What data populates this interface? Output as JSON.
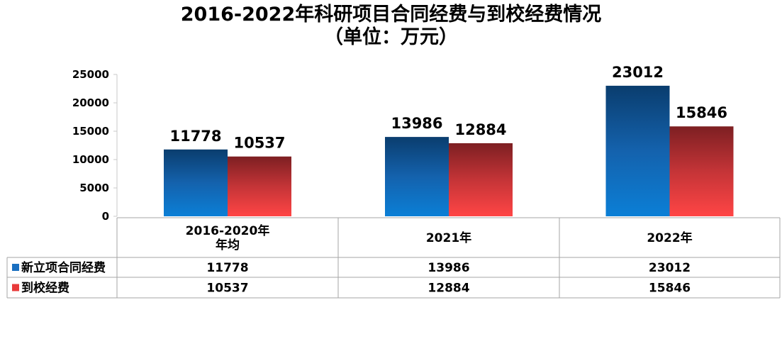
{
  "chart_data": {
    "type": "bar",
    "title": "2016-2022年科研项目合同经费与到校经费情况",
    "subtitle": "（单位：万元）",
    "categories": [
      "2016-2020年\n年均",
      "2021年",
      "2022年"
    ],
    "series": [
      {
        "name": "新立项合同经费",
        "values": [
          11778,
          13986,
          23012
        ],
        "color": "#1a6fc0"
      },
      {
        "name": "到校经费",
        "values": [
          10537,
          12884,
          15846
        ],
        "color": "#e83a3a"
      }
    ],
    "ylim": [
      0,
      25000
    ],
    "yticks": [
      0,
      5000,
      10000,
      15000,
      20000,
      25000
    ],
    "grid": false,
    "legend": "data-table",
    "data_table": true
  }
}
